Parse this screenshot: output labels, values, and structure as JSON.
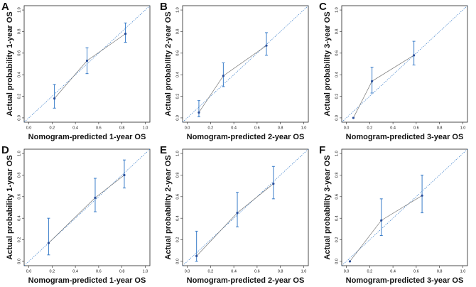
{
  "chart_data": [
    {
      "type": "calibration",
      "panel": "A",
      "xlabel": "Nomogram-predicted 1-year OS",
      "ylabel": "Actual probability 1-year OS",
      "x": [
        0.22,
        0.5,
        0.83
      ],
      "y": [
        0.18,
        0.53,
        0.78
      ],
      "lower": [
        0.09,
        0.41,
        0.7
      ],
      "upper": [
        0.31,
        0.65,
        0.88
      ],
      "color": "#3a7dc9",
      "xlim": [
        -0.04,
        1.04
      ],
      "ylim": [
        -0.04,
        1.04
      ],
      "xticks": [
        {
          "value": 0,
          "label": "0.0"
        },
        0.2,
        0.4,
        0.6,
        0.8,
        {
          "value": 1,
          "label": "1.0"
        }
      ],
      "yticks": [
        {
          "value": 0,
          "label": "0.0"
        },
        0.2,
        0.4,
        0.6,
        0.8,
        {
          "value": 1,
          "label": "1.0"
        }
      ]
    },
    {
      "type": "calibration",
      "panel": "B",
      "xlabel": "Nomogram-predicted 2-year OS",
      "ylabel": "Actual probability 2-year OS",
      "x": [
        0.1,
        0.31,
        0.68
      ],
      "y": [
        0.05,
        0.39,
        0.67
      ],
      "lower": [
        0.01,
        0.29,
        0.58
      ],
      "upper": [
        0.16,
        0.51,
        0.79
      ],
      "color": "#3a7dc9",
      "xlim": [
        -0.04,
        1.04
      ],
      "ylim": [
        -0.04,
        1.04
      ],
      "xticks": [
        {
          "value": 0,
          "label": "0.0"
        },
        0.2,
        0.4,
        0.6,
        0.8,
        {
          "value": 1,
          "label": "1.0"
        }
      ],
      "yticks": [
        {
          "value": 0,
          "label": "0.0"
        },
        0.2,
        0.4,
        0.6,
        0.8,
        {
          "value": 1,
          "label": "1.0"
        }
      ]
    },
    {
      "type": "calibration",
      "panel": "C",
      "xlabel": "Nomogram-predicted 3-year OS",
      "ylabel": "Actual probability 3-year OS",
      "x": [
        0.06,
        0.22,
        0.58
      ],
      "y": [
        0.0,
        0.34,
        0.58
      ],
      "lower": [
        null,
        0.23,
        0.49
      ],
      "upper": [
        null,
        0.47,
        0.71
      ],
      "color": "#3a7dc9",
      "xlim": [
        -0.04,
        1.04
      ],
      "ylim": [
        -0.04,
        1.04
      ],
      "xticks": [
        {
          "value": 0,
          "label": "0.0"
        },
        0.2,
        0.4,
        0.6,
        0.8,
        {
          "value": 1,
          "label": "1.0"
        }
      ],
      "yticks": [
        {
          "value": 0,
          "label": "0.0"
        },
        0.2,
        0.4,
        0.6,
        0.8,
        {
          "value": 1,
          "label": "1.0"
        }
      ]
    },
    {
      "type": "calibration",
      "panel": "D",
      "xlabel": "Nomogram-predicted 1-year OS",
      "ylabel": "Actual probability 1-year OS",
      "x": [
        0.17,
        0.57,
        0.82
      ],
      "y": [
        0.17,
        0.59,
        0.8
      ],
      "lower": [
        0.06,
        0.46,
        0.68
      ],
      "upper": [
        0.4,
        0.77,
        0.94
      ],
      "color": "#3a7dc9",
      "xlim": [
        -0.04,
        1.04
      ],
      "ylim": [
        -0.04,
        1.04
      ],
      "xticks": [
        {
          "value": 0,
          "label": "0.0"
        },
        0.2,
        0.4,
        0.6,
        0.8,
        {
          "value": 1,
          "label": "1.0"
        }
      ],
      "yticks": [
        {
          "value": 0,
          "label": "0.0"
        },
        0.2,
        0.4,
        0.6,
        0.8,
        {
          "value": 1,
          "label": "1.0"
        }
      ]
    },
    {
      "type": "calibration",
      "panel": "E",
      "xlabel": "Nomogram-predicted 2-year OS",
      "ylabel": "Actual probability 2-year OS",
      "x": [
        0.08,
        0.43,
        0.74
      ],
      "y": [
        0.05,
        0.45,
        0.72
      ],
      "lower": [
        0.0,
        0.32,
        0.58
      ],
      "upper": [
        0.28,
        0.64,
        0.88
      ],
      "color": "#3a7dc9",
      "xlim": [
        -0.04,
        1.04
      ],
      "ylim": [
        -0.04,
        1.04
      ],
      "xticks": [
        {
          "value": 0,
          "label": "0.0"
        },
        0.2,
        0.4,
        0.6,
        0.8,
        {
          "value": 1,
          "label": "1.0"
        }
      ],
      "yticks": [
        {
          "value": 0,
          "label": "0.0"
        },
        0.2,
        0.4,
        0.6,
        0.8,
        {
          "value": 1,
          "label": "1.0"
        }
      ]
    },
    {
      "type": "calibration",
      "panel": "F",
      "xlabel": "Nomogram-predicted 3-year OS",
      "ylabel": "Actual probability 3-year OS",
      "x": [
        0.03,
        0.3,
        0.65
      ],
      "y": [
        0.0,
        0.38,
        0.61
      ],
      "lower": [
        null,
        0.24,
        0.45
      ],
      "upper": [
        null,
        0.58,
        0.8
      ],
      "color": "#3a7dc9",
      "xlim": [
        -0.04,
        1.04
      ],
      "ylim": [
        -0.04,
        1.04
      ],
      "xticks": [
        {
          "value": 0,
          "label": "0.0"
        },
        0.2,
        0.4,
        0.6,
        0.8,
        {
          "value": 1,
          "label": "1.0"
        }
      ],
      "yticks": [
        {
          "value": 0,
          "label": "0.0"
        },
        0.2,
        0.4,
        0.6,
        0.8,
        {
          "value": 1,
          "label": "1.0"
        }
      ]
    }
  ]
}
